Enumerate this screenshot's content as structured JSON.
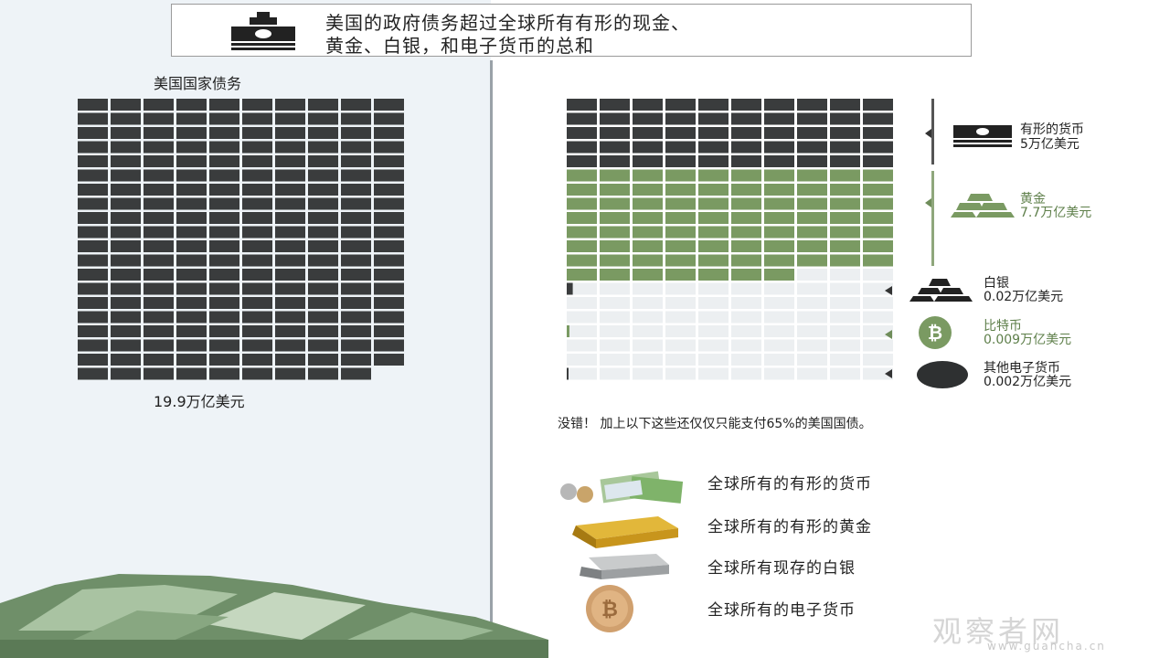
{
  "header": {
    "title_line1": "美国的政府债务超过全球所有有形的现金、",
    "title_line2": "黄金、白银，和电子货币的总和"
  },
  "chart_data": [
    {
      "type": "waffle",
      "title": "美国国家债务",
      "value_label": "19.9万亿美元",
      "total": 19.9,
      "unit": "万亿美元",
      "colors": {
        "debt": "#3a3c3d"
      }
    },
    {
      "type": "waffle",
      "series": [
        {
          "name": "有形的货币",
          "value_label": "5万亿美元",
          "value": 5,
          "color": "#3a3c3d"
        },
        {
          "name": "黄金",
          "value_label": "7.7万亿美元",
          "value": 7.7,
          "color": "#7a9a62"
        },
        {
          "name": "白银",
          "value_label": "0.02万亿美元",
          "value": 0.02,
          "color": "#3a3c3d"
        },
        {
          "name": "比特币",
          "value_label": "0.009万亿美元",
          "value": 0.009,
          "color": "#7a9a62"
        },
        {
          "name": "其他电子货币",
          "value_label": "0.002万亿美元",
          "value": 0.002,
          "color": "#3a3c3d"
        }
      ],
      "empty_color": "#eceff1"
    }
  ],
  "note": "没错！ 加上以下这些还仅仅只能支付65%的美国国债。",
  "items": [
    {
      "label": "全球所有的有形的货币"
    },
    {
      "label": "全球所有的有形的黄金"
    },
    {
      "label": "全球所有现存的白银"
    },
    {
      "label": "全球所有的电子货币"
    }
  ],
  "watermark": {
    "text": "观察者网",
    "url": "www.guancha.cn"
  }
}
